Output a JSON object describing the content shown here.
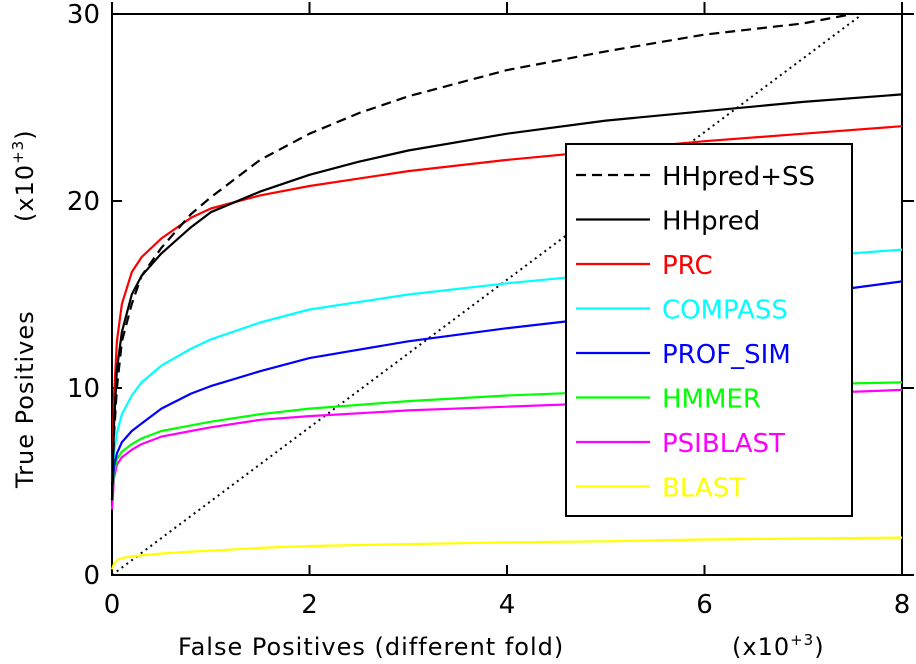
{
  "chart_data": {
    "type": "line",
    "xlabel": "False Positives (different fold)",
    "x_multiplier": "(x10",
    "x_multiplier_exp": "+3",
    "x_multiplier_close": ")",
    "ylabel": "True Positives",
    "y_multiplier": "(x10",
    "y_multiplier_exp": "+3",
    "y_multiplier_close": ")",
    "xlim": [
      0,
      8
    ],
    "ylim": [
      0,
      30
    ],
    "x_ticks": [
      0,
      2,
      4,
      6,
      8
    ],
    "x_tick_labels": [
      "0",
      "2",
      "4",
      "6",
      "8"
    ],
    "y_ticks": [
      0,
      10,
      20,
      30
    ],
    "y_tick_labels": [
      "0",
      "10",
      "20",
      "30"
    ],
    "grid": false,
    "legend_position": "right",
    "series": [
      {
        "name": "HHpred+SS",
        "color": "#000000",
        "dash": "dashed",
        "x": [
          0,
          0.02,
          0.05,
          0.1,
          0.2,
          0.3,
          0.5,
          0.8,
          1.0,
          1.5,
          2.0,
          2.5,
          3.0,
          4.0,
          5.0,
          6.0,
          7.0,
          7.5
        ],
        "y": [
          4,
          7.5,
          10,
          12.5,
          14.5,
          16,
          17.5,
          19.3,
          20.2,
          22.2,
          23.6,
          24.7,
          25.6,
          27.0,
          28.0,
          28.9,
          29.5,
          30
        ]
      },
      {
        "name": "HHpred",
        "color": "#000000",
        "dash": "solid",
        "x": [
          0,
          0.02,
          0.05,
          0.1,
          0.2,
          0.3,
          0.5,
          0.8,
          1.0,
          1.5,
          2.0,
          2.5,
          3.0,
          4.0,
          5.0,
          6.0,
          7.0,
          8.0
        ],
        "y": [
          4,
          8,
          11,
          13,
          15,
          16,
          17.2,
          18.6,
          19.4,
          20.5,
          21.4,
          22.1,
          22.7,
          23.6,
          24.3,
          24.8,
          25.3,
          25.7
        ]
      },
      {
        "name": "PRC",
        "color": "#ff0000",
        "dash": "solid",
        "x": [
          0,
          0.02,
          0.05,
          0.1,
          0.2,
          0.3,
          0.5,
          0.8,
          1.0,
          1.5,
          2.0,
          3.0,
          4.0,
          5.0,
          6.0,
          7.0,
          8.0
        ],
        "y": [
          5,
          9.5,
          12.5,
          14.5,
          16.2,
          17,
          18,
          19.1,
          19.6,
          20.3,
          20.8,
          21.6,
          22.2,
          22.7,
          23.2,
          23.6,
          24.0
        ]
      },
      {
        "name": "COMPASS",
        "color": "#00ffff",
        "dash": "solid",
        "x": [
          0,
          0.02,
          0.05,
          0.1,
          0.2,
          0.3,
          0.5,
          0.8,
          1.0,
          1.5,
          2.0,
          3.0,
          4.0,
          5.0,
          6.0,
          7.0,
          8.0
        ],
        "y": [
          5,
          6.5,
          7.6,
          8.6,
          9.6,
          10.3,
          11.2,
          12.1,
          12.6,
          13.5,
          14.2,
          15.0,
          15.6,
          16.1,
          16.6,
          17.0,
          17.4
        ]
      },
      {
        "name": "PROF_SIM",
        "color": "#0000ff",
        "dash": "solid",
        "x": [
          0,
          0.02,
          0.05,
          0.1,
          0.2,
          0.3,
          0.5,
          0.8,
          1.0,
          1.5,
          2.0,
          3.0,
          4.0,
          5.0,
          6.0,
          7.0,
          8.0
        ],
        "y": [
          4.5,
          5.8,
          6.5,
          7.1,
          7.7,
          8.1,
          8.9,
          9.7,
          10.1,
          10.9,
          11.6,
          12.5,
          13.2,
          13.8,
          14.4,
          15.0,
          15.7
        ]
      },
      {
        "name": "HMMER",
        "color": "#00ff00",
        "dash": "solid",
        "x": [
          0,
          0.02,
          0.05,
          0.1,
          0.2,
          0.3,
          0.5,
          0.8,
          1.0,
          1.5,
          2.0,
          3.0,
          4.0,
          5.0,
          6.0,
          7.0,
          8.0
        ],
        "y": [
          4,
          5.5,
          6.2,
          6.6,
          7.0,
          7.3,
          7.7,
          8.0,
          8.2,
          8.6,
          8.9,
          9.3,
          9.6,
          9.8,
          10.0,
          10.2,
          10.3
        ]
      },
      {
        "name": "PSIBLAST",
        "color": "#ff00ff",
        "dash": "solid",
        "x": [
          0,
          0.02,
          0.05,
          0.1,
          0.2,
          0.3,
          0.5,
          0.8,
          1.0,
          1.5,
          2.0,
          3.0,
          4.0,
          5.0,
          6.0,
          7.0,
          8.0
        ],
        "y": [
          3.5,
          5.2,
          5.9,
          6.3,
          6.7,
          7.0,
          7.4,
          7.7,
          7.9,
          8.3,
          8.5,
          8.8,
          9.0,
          9.2,
          9.5,
          9.7,
          9.9
        ]
      },
      {
        "name": "BLAST",
        "color": "#ffff00",
        "dash": "solid",
        "x": [
          0,
          0.02,
          0.05,
          0.1,
          0.2,
          0.3,
          0.5,
          0.8,
          1.0,
          1.5,
          2.0,
          3.0,
          4.0,
          5.0,
          6.0,
          7.0,
          8.0
        ],
        "y": [
          0.3,
          0.6,
          0.8,
          0.9,
          1.0,
          1.05,
          1.15,
          1.25,
          1.3,
          1.45,
          1.55,
          1.65,
          1.75,
          1.8,
          1.9,
          1.95,
          2.0
        ]
      }
    ],
    "reference_line": {
      "style": "dotted",
      "color": "#000000",
      "x": [
        0,
        7.6
      ],
      "y": [
        0,
        30
      ]
    }
  }
}
